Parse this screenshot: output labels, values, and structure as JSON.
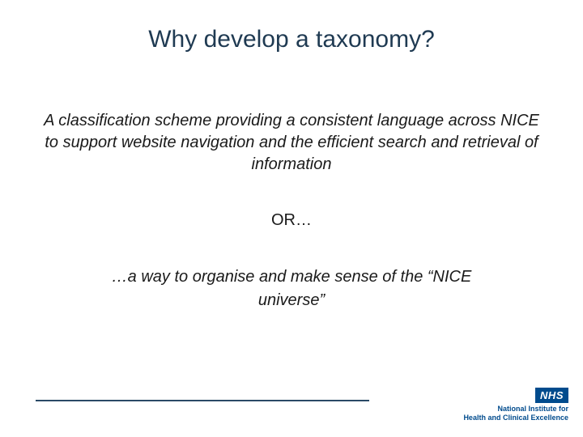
{
  "slide": {
    "title": "Why develop a taxonomy?",
    "title_color": "#1f3a52",
    "title_fontsize": 30,
    "body": "A classification scheme providing a consistent language across NICE to support website navigation and the efficient search and retrieval of information",
    "body_fontsize": 20,
    "body_fontstyle": "italic",
    "or_text": "OR…",
    "alt_text": "…a way to organise and make sense of the “NICE universe”",
    "text_color": "#1a1a1a",
    "background_color": "#ffffff"
  },
  "footer": {
    "line_color": "#2a4a66",
    "logo": {
      "nhs_label": "NHS",
      "nhs_bg": "#004b8d",
      "line1": "National Institute for",
      "line2": "Health and Clinical Excellence",
      "text_color": "#004b8d"
    }
  }
}
